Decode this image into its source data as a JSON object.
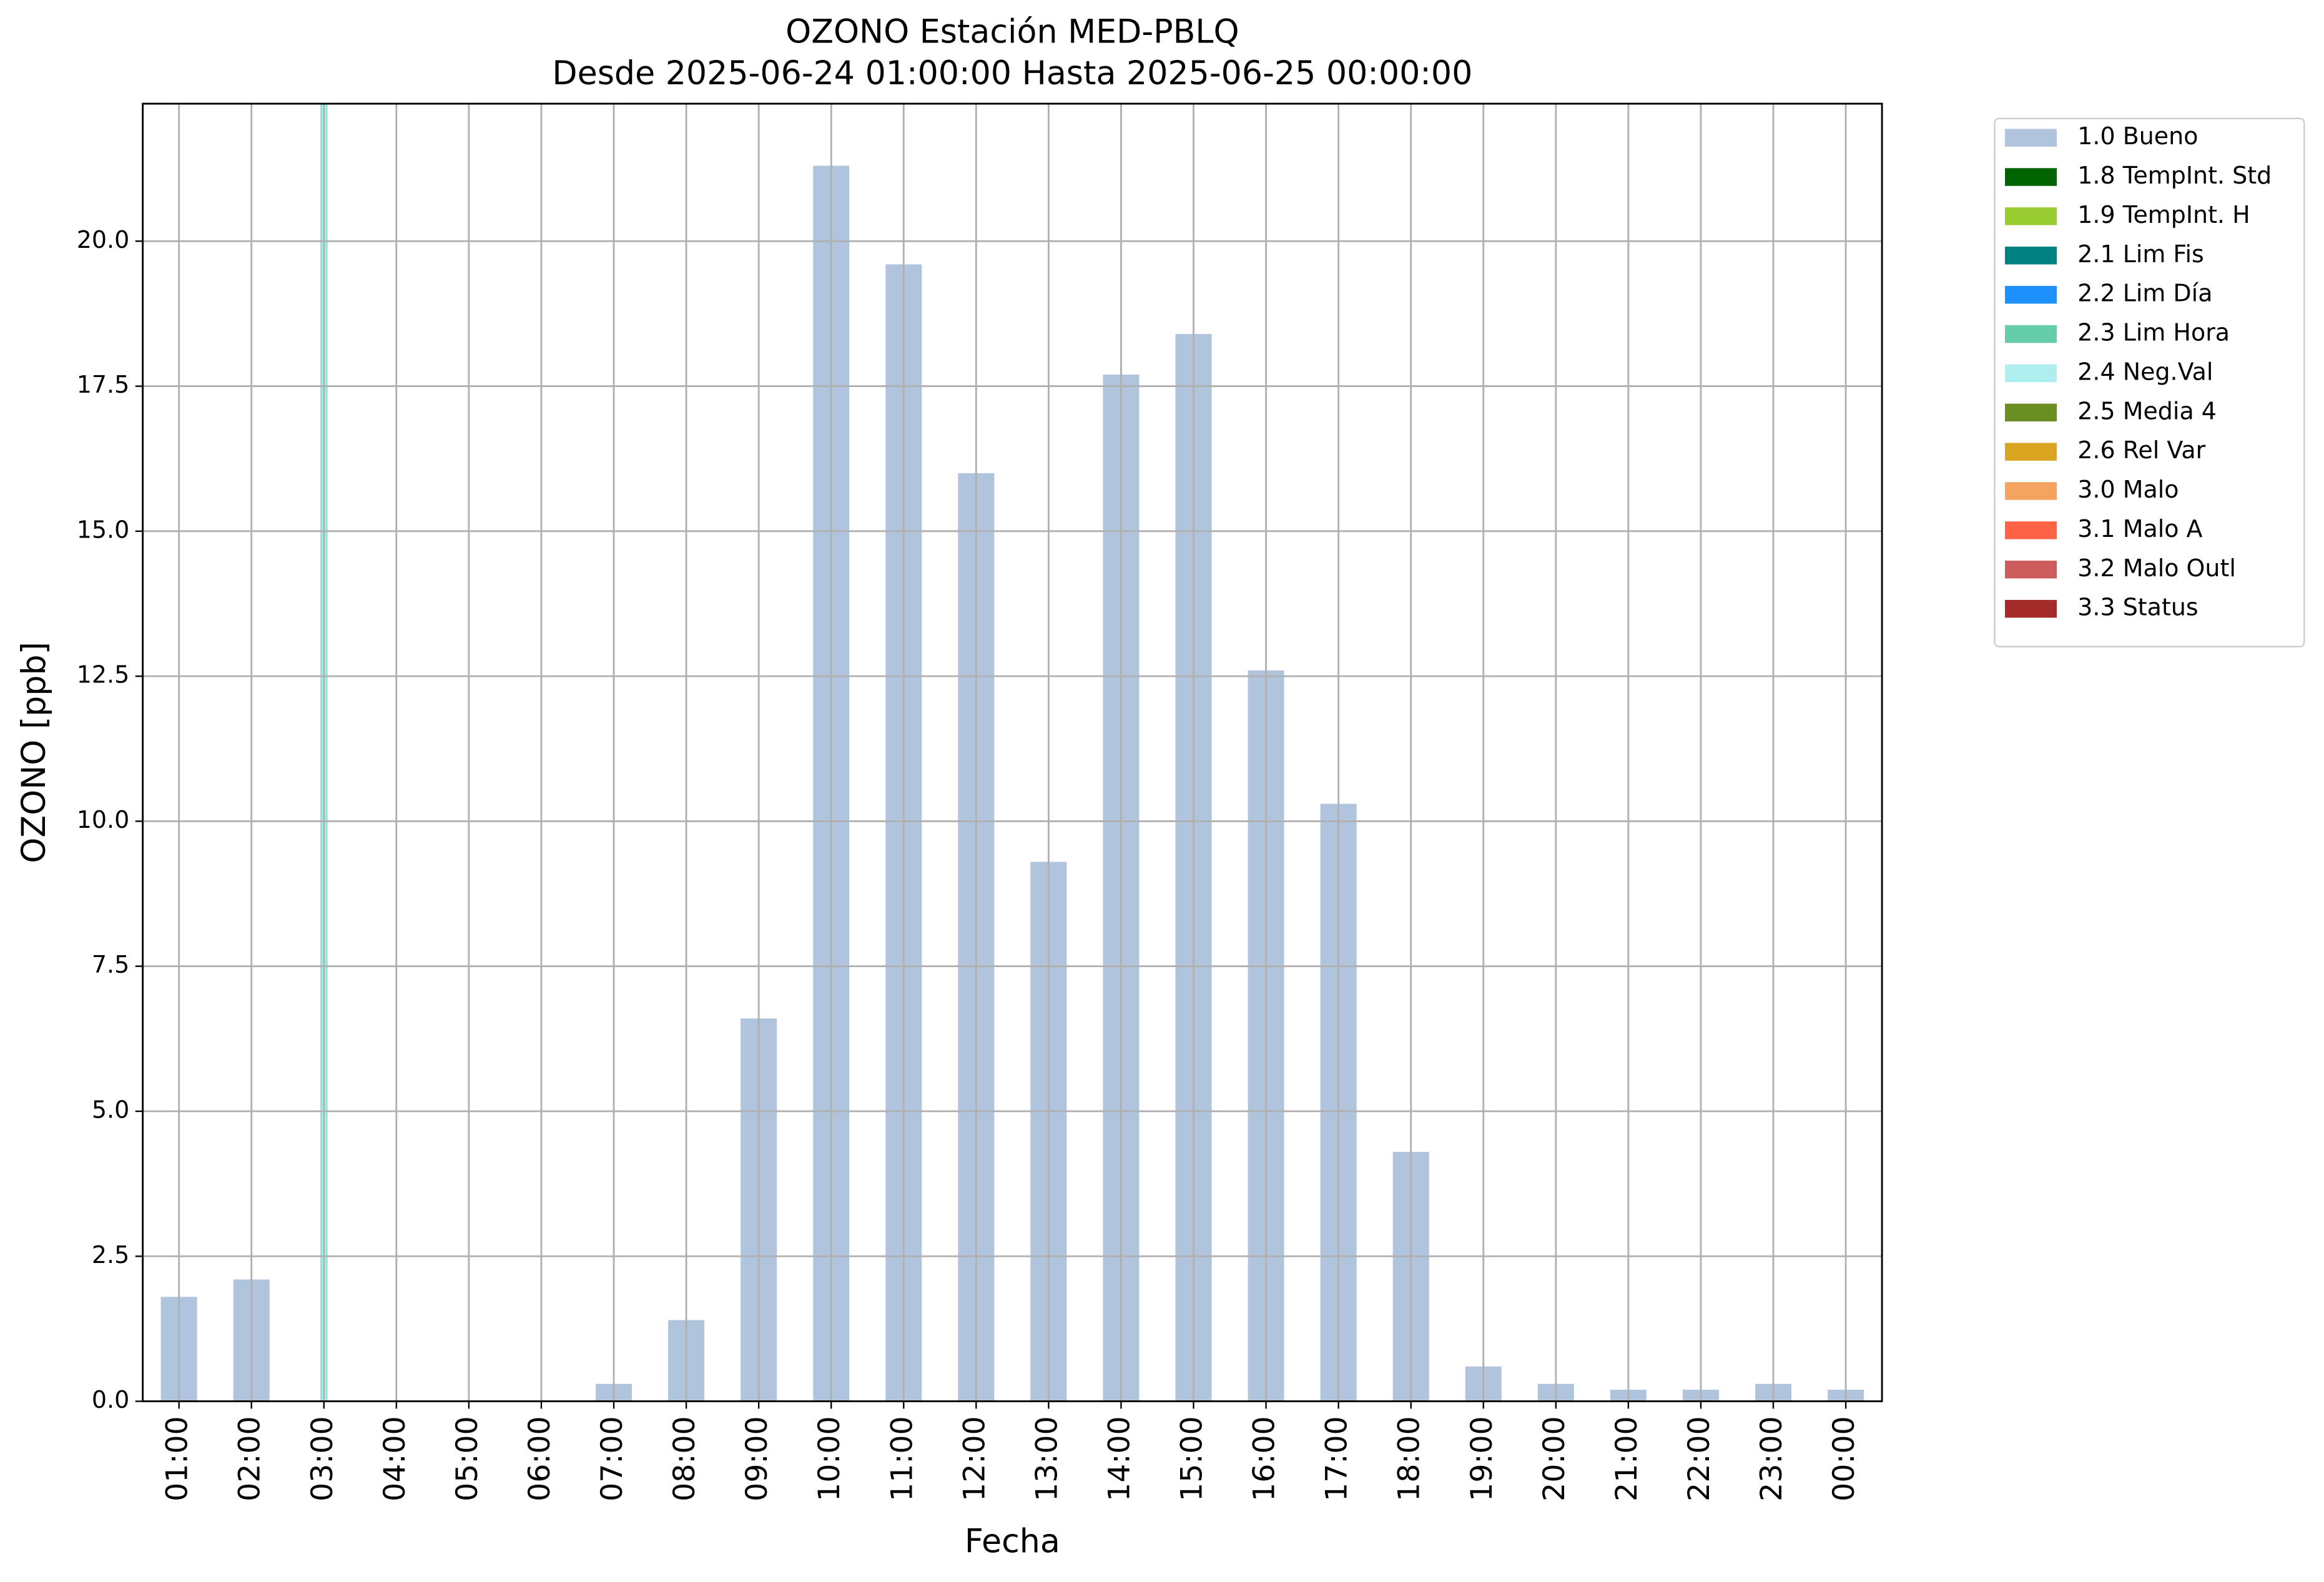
{
  "chart_data": {
    "type": "bar",
    "title": "OZONO Estación MED-PBLQ",
    "subtitle": "Desde 2025-06-24 01:00:00 Hasta 2025-06-25 00:00:00",
    "x_label": "Fecha",
    "y_label": "OZONO [ppb]",
    "categories": [
      "01:00",
      "02:00",
      "03:00",
      "04:00",
      "05:00",
      "06:00",
      "07:00",
      "08:00",
      "09:00",
      "10:00",
      "11:00",
      "12:00",
      "13:00",
      "14:00",
      "15:00",
      "16:00",
      "17:00",
      "18:00",
      "19:00",
      "20:00",
      "21:00",
      "22:00",
      "23:00",
      "00:00"
    ],
    "series": [
      {
        "name": "1.0 Bueno",
        "color": "#b0c4de",
        "values": [
          1.8,
          2.1,
          null,
          null,
          null,
          null,
          0.3,
          1.4,
          6.6,
          21.3,
          19.6,
          16.0,
          9.3,
          17.7,
          18.4,
          12.6,
          10.3,
          4.3,
          0.6,
          0.3,
          0.2,
          0.2,
          0.3,
          0.2
        ]
      },
      {
        "name": "1.8 TempInt. Std",
        "color": "#006400",
        "values": [
          null,
          null,
          null,
          null,
          null,
          null,
          null,
          null,
          null,
          null,
          null,
          null,
          null,
          null,
          null,
          null,
          null,
          null,
          null,
          null,
          null,
          null,
          null,
          null
        ]
      },
      {
        "name": "1.9 TempInt. H",
        "color": "#9acd32",
        "values": [
          null,
          null,
          null,
          null,
          null,
          null,
          null,
          null,
          null,
          null,
          null,
          null,
          null,
          null,
          null,
          null,
          null,
          null,
          null,
          null,
          null,
          null,
          null,
          null
        ]
      },
      {
        "name": "2.1 Lim Fis",
        "color": "#008080",
        "values": [
          null,
          null,
          null,
          null,
          null,
          null,
          null,
          null,
          null,
          null,
          null,
          null,
          null,
          null,
          null,
          null,
          null,
          null,
          null,
          null,
          null,
          null,
          null,
          null
        ]
      },
      {
        "name": "2.2 Lim Día",
        "color": "#1e90ff",
        "values": [
          null,
          null,
          null,
          null,
          null,
          null,
          null,
          null,
          null,
          null,
          null,
          null,
          null,
          null,
          null,
          null,
          null,
          null,
          null,
          null,
          null,
          null,
          null,
          null
        ]
      },
      {
        "name": "2.3 Lim Hora",
        "color": "#66cdaa",
        "values": [
          null,
          null,
          null,
          null,
          null,
          null,
          null,
          null,
          null,
          null,
          null,
          null,
          null,
          null,
          null,
          null,
          null,
          null,
          null,
          null,
          null,
          null,
          null,
          null
        ]
      },
      {
        "name": "2.4 Neg.Val",
        "color": "#afeeee",
        "style": "vline",
        "values": [
          null,
          null,
          0,
          null,
          null,
          null,
          null,
          null,
          null,
          null,
          null,
          null,
          null,
          null,
          null,
          null,
          null,
          null,
          null,
          null,
          null,
          null,
          null,
          null
        ]
      },
      {
        "name": "2.5 Media 4",
        "color": "#6b8e23",
        "values": [
          null,
          null,
          null,
          null,
          null,
          null,
          null,
          null,
          null,
          null,
          null,
          null,
          null,
          null,
          null,
          null,
          null,
          null,
          null,
          null,
          null,
          null,
          null,
          null
        ]
      },
      {
        "name": "2.6 Rel Var",
        "color": "#daa520",
        "values": [
          null,
          null,
          null,
          null,
          null,
          null,
          null,
          null,
          null,
          null,
          null,
          null,
          null,
          null,
          null,
          null,
          null,
          null,
          null,
          null,
          null,
          null,
          null,
          null
        ]
      },
      {
        "name": "3.0 Malo",
        "color": "#f4a460",
        "values": [
          null,
          null,
          null,
          null,
          null,
          null,
          null,
          null,
          null,
          null,
          null,
          null,
          null,
          null,
          null,
          null,
          null,
          null,
          null,
          null,
          null,
          null,
          null,
          null
        ]
      },
      {
        "name": "3.1 Malo A",
        "color": "#ff6347",
        "values": [
          null,
          null,
          null,
          null,
          null,
          null,
          null,
          null,
          null,
          null,
          null,
          null,
          null,
          null,
          null,
          null,
          null,
          null,
          null,
          null,
          null,
          null,
          null,
          null
        ]
      },
      {
        "name": "3.2 Malo Outl",
        "color": "#cd5c5c",
        "values": [
          null,
          null,
          null,
          null,
          null,
          null,
          null,
          null,
          null,
          null,
          null,
          null,
          null,
          null,
          null,
          null,
          null,
          null,
          null,
          null,
          null,
          null,
          null,
          null
        ]
      },
      {
        "name": "3.3 Status",
        "color": "#a52a2a",
        "values": [
          null,
          null,
          null,
          null,
          null,
          null,
          null,
          null,
          null,
          null,
          null,
          null,
          null,
          null,
          null,
          null,
          null,
          null,
          null,
          null,
          null,
          null,
          null,
          null
        ]
      }
    ],
    "ylim": [
      0,
      22.37
    ],
    "yticks": [
      {
        "value": 0,
        "label": "0.0"
      },
      {
        "value": 2.5,
        "label": "2.5"
      },
      {
        "value": 5,
        "label": "5.0"
      },
      {
        "value": 7.5,
        "label": "7.5"
      },
      {
        "value": 10,
        "label": "10.0"
      },
      {
        "value": 12.5,
        "label": "12.5"
      },
      {
        "value": 15,
        "label": "15.0"
      },
      {
        "value": 17.5,
        "label": "17.5"
      },
      {
        "value": 20,
        "label": "20.0"
      }
    ],
    "grid": true,
    "legend": "outside right"
  }
}
